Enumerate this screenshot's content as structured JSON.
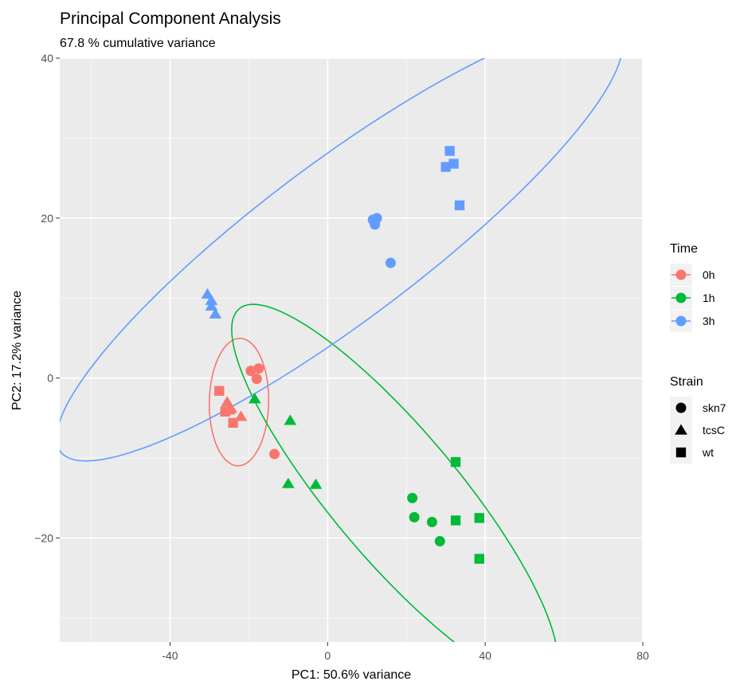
{
  "chart_data": {
    "type": "scatter",
    "title": "Principal Component Analysis",
    "subtitle": "67.8 % cumulative variance",
    "xlabel": "PC1: 50.6% variance",
    "ylabel": "PC2: 17.2% variance",
    "xlim": [
      -68,
      80
    ],
    "ylim": [
      -33,
      40
    ],
    "xticks": [
      -40,
      0,
      40,
      80
    ],
    "yticks": [
      -20,
      0,
      20,
      40
    ],
    "xtick_labels": [
      "-40",
      "0",
      "40",
      "80"
    ],
    "ytick_labels": [
      "−20",
      "0",
      "20",
      "40"
    ],
    "grid": true,
    "legend_placement": "right",
    "legend_time_title": "Time",
    "legend_strain_title": "Strain",
    "time_levels": [
      {
        "label": "0h",
        "color": "#F8766D"
      },
      {
        "label": "1h",
        "color": "#00BA38"
      },
      {
        "label": "3h",
        "color": "#619CFF"
      }
    ],
    "strain_levels": [
      {
        "label": "skn7",
        "shape": "circle"
      },
      {
        "label": "tcsC",
        "shape": "triangle"
      },
      {
        "label": "wt",
        "shape": "square"
      }
    ],
    "points": [
      {
        "x": -19.5,
        "y": 0.9,
        "time": "0h",
        "strain": "skn7"
      },
      {
        "x": -17.5,
        "y": 1.2,
        "time": "0h",
        "strain": "skn7"
      },
      {
        "x": -18.0,
        "y": -0.1,
        "time": "0h",
        "strain": "skn7"
      },
      {
        "x": -13.5,
        "y": -9.5,
        "time": "0h",
        "strain": "skn7"
      },
      {
        "x": -25.5,
        "y": -3.0,
        "time": "0h",
        "strain": "tcsC"
      },
      {
        "x": -24.5,
        "y": -3.8,
        "time": "0h",
        "strain": "tcsC"
      },
      {
        "x": -22.0,
        "y": -4.8,
        "time": "0h",
        "strain": "tcsC"
      },
      {
        "x": -25.0,
        "y": -4.0,
        "time": "0h",
        "strain": "tcsC"
      },
      {
        "x": -27.5,
        "y": -1.6,
        "time": "0h",
        "strain": "wt"
      },
      {
        "x": -26.0,
        "y": -4.2,
        "time": "0h",
        "strain": "wt"
      },
      {
        "x": -24.0,
        "y": -5.6,
        "time": "0h",
        "strain": "wt"
      },
      {
        "x": -18.5,
        "y": -2.6,
        "time": "1h",
        "strain": "tcsC"
      },
      {
        "x": -9.5,
        "y": -5.3,
        "time": "1h",
        "strain": "tcsC"
      },
      {
        "x": -10.0,
        "y": -13.2,
        "time": "1h",
        "strain": "tcsC"
      },
      {
        "x": -3.0,
        "y": -13.3,
        "time": "1h",
        "strain": "tcsC"
      },
      {
        "x": 21.5,
        "y": -15.0,
        "time": "1h",
        "strain": "skn7"
      },
      {
        "x": 22.0,
        "y": -17.4,
        "time": "1h",
        "strain": "skn7"
      },
      {
        "x": 26.5,
        "y": -18.0,
        "time": "1h",
        "strain": "skn7"
      },
      {
        "x": 28.5,
        "y": -20.4,
        "time": "1h",
        "strain": "skn7"
      },
      {
        "x": 32.5,
        "y": -10.5,
        "time": "1h",
        "strain": "wt"
      },
      {
        "x": 32.5,
        "y": -17.8,
        "time": "1h",
        "strain": "wt"
      },
      {
        "x": 38.5,
        "y": -17.5,
        "time": "1h",
        "strain": "wt"
      },
      {
        "x": 38.5,
        "y": -22.6,
        "time": "1h",
        "strain": "wt"
      },
      {
        "x": -30.5,
        "y": 10.5,
        "time": "3h",
        "strain": "tcsC"
      },
      {
        "x": -29.5,
        "y": 9.7,
        "time": "3h",
        "strain": "tcsC"
      },
      {
        "x": -29.5,
        "y": 9.0,
        "time": "3h",
        "strain": "tcsC"
      },
      {
        "x": -28.5,
        "y": 8.0,
        "time": "3h",
        "strain": "tcsC"
      },
      {
        "x": 11.5,
        "y": 19.8,
        "time": "3h",
        "strain": "skn7"
      },
      {
        "x": 12.5,
        "y": 20.0,
        "time": "3h",
        "strain": "skn7"
      },
      {
        "x": 12.0,
        "y": 19.2,
        "time": "3h",
        "strain": "skn7"
      },
      {
        "x": 16.0,
        "y": 14.4,
        "time": "3h",
        "strain": "skn7"
      },
      {
        "x": 31.0,
        "y": 28.4,
        "time": "3h",
        "strain": "wt"
      },
      {
        "x": 30.0,
        "y": 26.4,
        "time": "3h",
        "strain": "wt"
      },
      {
        "x": 32.0,
        "y": 26.8,
        "time": "3h",
        "strain": "wt"
      },
      {
        "x": 33.5,
        "y": 21.6,
        "time": "3h",
        "strain": "wt"
      }
    ],
    "ellipses": [
      {
        "time": "0h",
        "cx": -22.5,
        "cy": -3.0,
        "rx": 7.5,
        "ry": 8.0,
        "angle_deg": -15
      },
      {
        "time": "1h",
        "cx": 17.0,
        "cy": -14.5,
        "rx": 46.5,
        "ry": 10.5,
        "angle_deg": -28
      },
      {
        "time": "3h",
        "cx": 3.0,
        "cy": 17.0,
        "rx": 76.0,
        "ry": 11.5,
        "angle_deg": 19.3
      }
    ]
  }
}
